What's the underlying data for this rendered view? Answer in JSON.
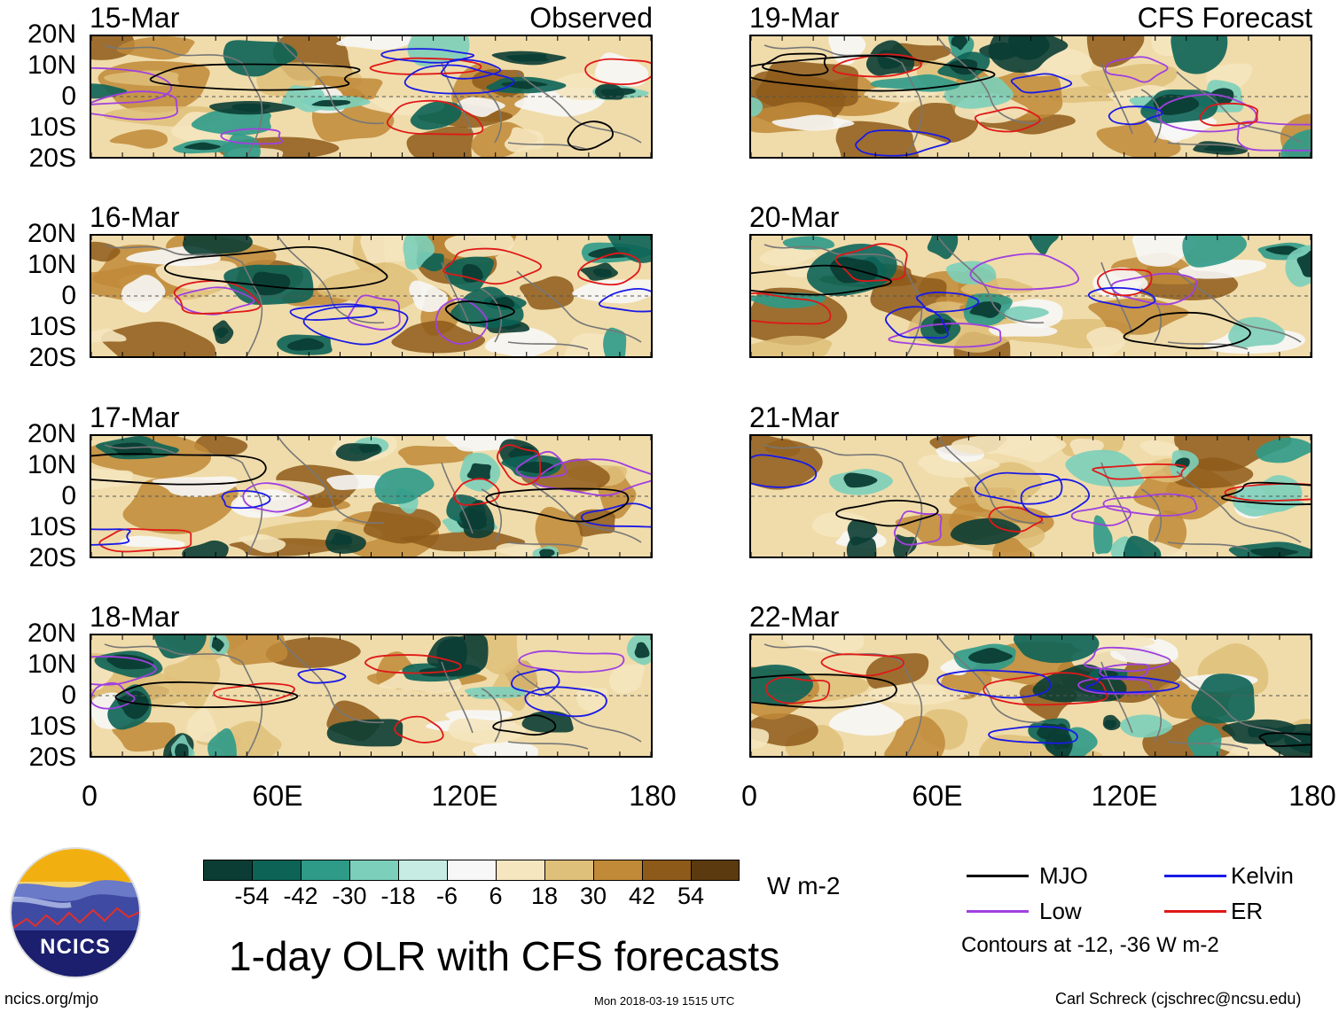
{
  "title": "1-day OLR with CFS forecasts",
  "observed_label": "Observed",
  "forecast_label": "CFS Forecast",
  "observed_dates": [
    "15-Mar",
    "16-Mar",
    "17-Mar",
    "18-Mar"
  ],
  "forecast_dates": [
    "19-Mar",
    "20-Mar",
    "21-Mar",
    "22-Mar"
  ],
  "lat_labels": [
    "20N",
    "10N",
    "0",
    "10S",
    "20S"
  ],
  "lon_labels": [
    "0",
    "60E",
    "120E",
    "180"
  ],
  "colorbar": {
    "colors": [
      "#0b3d34",
      "#0c6356",
      "#2e9a88",
      "#7ccfba",
      "#c7ece3",
      "#f7f7f7",
      "#f5e6bf",
      "#dfc07a",
      "#c08a38",
      "#8e5a1a",
      "#5a3a0e"
    ],
    "ticks": [
      "-54",
      "-42",
      "-30",
      "-18",
      "-6",
      "6",
      "18",
      "30",
      "42",
      "54"
    ],
    "unit": "W m-2"
  },
  "legend": {
    "mjo": {
      "label": "MJO",
      "color": "#000000"
    },
    "kelvin": {
      "label": "Kelvin",
      "color": "#1a1ae6"
    },
    "low": {
      "label": "Low",
      "color": "#a040e0"
    },
    "er": {
      "label": "ER",
      "color": "#e01818"
    },
    "note": "Contours at -12, -36 W m-2"
  },
  "logo_text": "NCICS",
  "footer": {
    "url": "ncics.org/mjo",
    "timestamp": "Mon 2018-03-19 1515 UTC",
    "credit": "Carl Schreck (cjschrec@ncsu.edu)"
  }
}
